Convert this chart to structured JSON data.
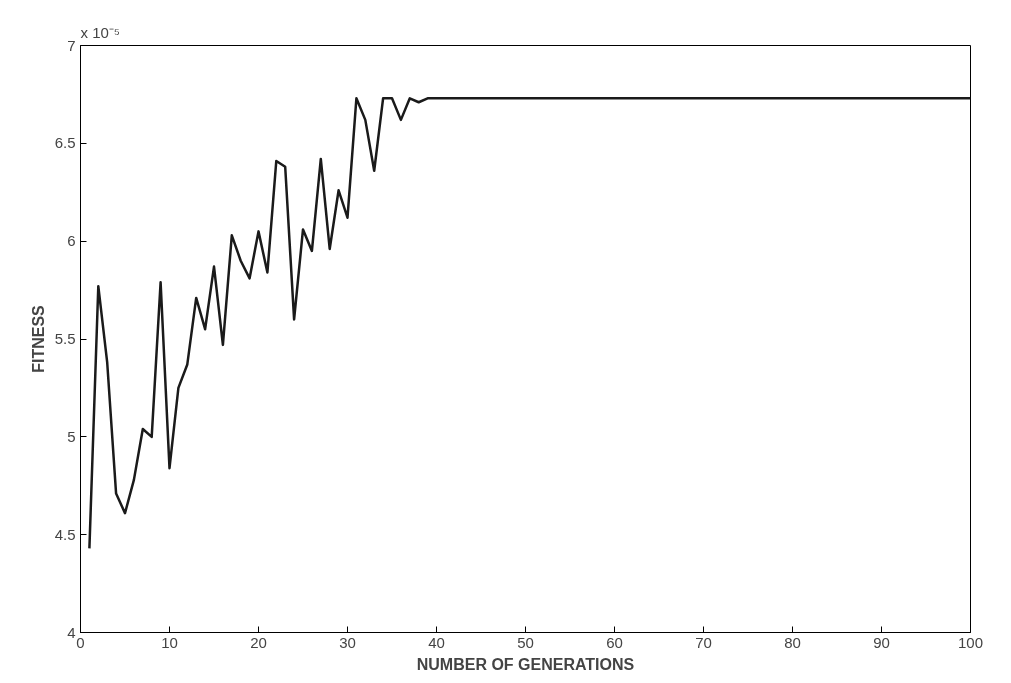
{
  "chart_data": {
    "type": "line",
    "xlabel": "NUMBER OF GENERATIONS",
    "ylabel": "FITNESS",
    "annotations": [
      "x 10⁻⁵"
    ],
    "x": [
      1,
      2,
      3,
      4,
      5,
      6,
      7,
      8,
      9,
      10,
      11,
      12,
      13,
      14,
      15,
      16,
      17,
      18,
      19,
      20,
      21,
      22,
      23,
      24,
      25,
      26,
      27,
      28,
      29,
      30,
      31,
      32,
      33,
      34,
      35,
      36,
      37,
      38,
      39,
      40,
      100
    ],
    "series": [
      {
        "color": "#1a1a1a",
        "values": [
          4.43,
          5.77,
          5.38,
          4.71,
          4.61,
          4.78,
          5.04,
          5.0,
          5.79,
          4.84,
          5.25,
          5.37,
          5.71,
          5.55,
          5.87,
          5.47,
          6.03,
          5.9,
          5.81,
          6.05,
          5.84,
          6.41,
          6.38,
          5.6,
          6.06,
          5.95,
          6.42,
          5.96,
          6.26,
          6.12,
          6.73,
          6.62,
          6.36,
          6.73,
          6.73,
          6.62,
          6.73,
          6.71,
          6.73,
          6.73,
          6.73
        ]
      }
    ],
    "xlim": [
      0,
      100
    ],
    "ylim": [
      4,
      7
    ],
    "xticks": [
      0,
      10,
      20,
      30,
      40,
      50,
      60,
      70,
      80,
      90,
      100
    ],
    "yticks": [
      4,
      4.5,
      5,
      5.5,
      6,
      6.5,
      7
    ],
    "grid": false,
    "marker": "none",
    "line_style": "solid"
  }
}
